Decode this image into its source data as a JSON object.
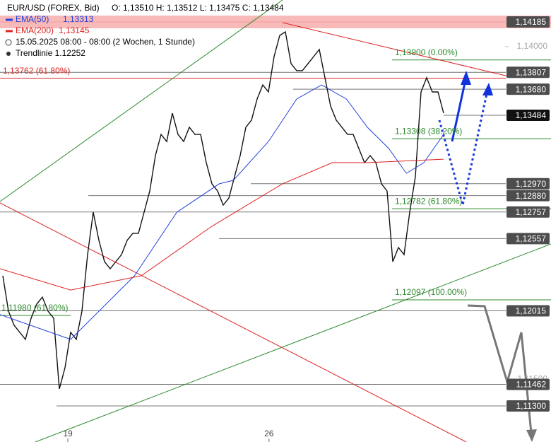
{
  "chart_data": {
    "type": "line",
    "header": {
      "ohlc": "O: 1,13510  H: 1,13512  L: 1,13475  C: 1,13484",
      "period": "15.05.2025 08:00 - 08:00   (2 Wochen, 1 Stunde)",
      "trendline": "Trendlinie  1.12252"
    },
    "series": [
      {
        "name": "EUR/USD (FOREX, Bid)",
        "color": "#111111",
        "x": [
          0,
          1,
          2,
          3,
          4,
          5,
          6,
          7,
          8,
          9,
          10,
          11,
          12,
          13,
          14,
          15,
          16,
          17,
          18,
          19,
          20,
          21,
          22,
          23,
          24,
          25,
          26,
          27,
          28,
          29,
          30,
          31,
          32,
          33,
          34,
          35,
          36,
          37,
          38,
          39,
          40,
          41,
          42,
          43,
          44,
          45,
          46,
          47,
          48,
          49,
          50,
          51,
          52,
          53,
          54,
          55,
          56,
          57,
          58,
          59,
          60,
          61,
          62,
          63,
          64,
          65,
          66,
          67,
          68,
          69,
          70,
          71,
          72,
          73,
          74,
          75,
          76,
          77,
          78
        ],
        "values": [
          1.12278,
          1.12012,
          1.11906,
          1.11853,
          1.118,
          1.11959,
          1.12065,
          1.12118,
          1.12012,
          1.11959,
          1.11428,
          1.11587,
          1.11853,
          1.118,
          1.12012,
          1.12437,
          1.12756,
          1.12544,
          1.12384,
          1.12331,
          1.12384,
          1.12437,
          1.12544,
          1.12597,
          1.12597,
          1.12756,
          1.12915,
          1.13181,
          1.1334,
          1.13287,
          1.135,
          1.1334,
          1.13287,
          1.13394,
          1.1334,
          1.1334,
          1.13128,
          1.12969,
          1.12915,
          1.12809,
          1.12862,
          1.13022,
          1.13181,
          1.13394,
          1.13447,
          1.13606,
          1.13712,
          1.13659,
          1.13925,
          1.14084,
          1.14111,
          1.13872,
          1.13819,
          1.13819,
          1.13872,
          1.13925,
          1.13978,
          1.13766,
          1.13553,
          1.13447,
          1.13394,
          1.1334,
          1.1334,
          1.13234,
          1.13128,
          1.13181,
          1.13128,
          1.12969,
          1.12915,
          1.12384,
          1.1249,
          1.12437,
          1.12756,
          1.13022,
          1.13659,
          1.13766,
          1.13659,
          1.13659,
          1.135
        ]
      },
      {
        "name": "EMA(50)",
        "legend_value": "1,13313",
        "color": "#2244dd",
        "x": [
          -0.5,
          12,
          23.3,
          30.8,
          38.3,
          40.8,
          47,
          52,
          56.4,
          60.8,
          64.5,
          68.3,
          71.4,
          74.5,
          78
        ],
        "values": [
          1.11986,
          1.118,
          1.12278,
          1.12756,
          1.12969,
          1.12995,
          1.13287,
          1.13606,
          1.13712,
          1.13606,
          1.13394,
          1.13234,
          1.13048,
          1.13128,
          1.1334
        ]
      },
      {
        "name": "EMA(200)",
        "legend_value": "1,13145",
        "color": "#dd2222",
        "x": [
          -0.5,
          12,
          24.5,
          37,
          49.5,
          58.3,
          64.5,
          78
        ],
        "values": [
          1.12331,
          1.12171,
          1.12278,
          1.1265,
          1.12969,
          1.13128,
          1.13128,
          1.13154
        ]
      }
    ],
    "xlim": [
      -0.5,
      97
    ],
    "xticks": [
      {
        "value": 11.5,
        "label": "19"
      },
      {
        "value": 47.1,
        "label": "26"
      }
    ],
    "ylim": [
      1.11029,
      1.1435
    ],
    "yticks": [
      {
        "value": 1.14,
        "label": "1,14000"
      },
      {
        "value": 1.115,
        "label": "1,11500"
      }
    ],
    "levels": [
      {
        "value": 1.14185,
        "label": "1,14185"
      },
      {
        "value": 1.13807,
        "label": "1,13807"
      },
      {
        "value": 1.1368,
        "label": "1,13680"
      },
      {
        "value": 1.13484,
        "label": "1,13484"
      },
      {
        "value": 1.1297,
        "label": "1,12970"
      },
      {
        "value": 1.1288,
        "label": "1,12880"
      },
      {
        "value": 1.12757,
        "label": "1,12757"
      },
      {
        "value": 1.12557,
        "label": "1,12557"
      },
      {
        "value": 1.12015,
        "label": "1,12015"
      },
      {
        "value": 1.11462,
        "label": "1,11462"
      },
      {
        "value": 1.113,
        "label": "1,11300"
      }
    ],
    "annotations": [
      {
        "value": 1.139,
        "text": "1,13900 (0.00%)"
      },
      {
        "value": 1.13308,
        "text": "1,13308 (38.20%)"
      },
      {
        "value": 1.12782,
        "text": "1,12782 (61.80%)"
      },
      {
        "value": 1.12097,
        "text": "1,12097 (100.00%)"
      },
      {
        "value": 1.13762,
        "text": "1,13762 (61.80%)"
      },
      {
        "value": 1.1198,
        "text": "1,11980 (61.80%)"
      }
    ]
  }
}
